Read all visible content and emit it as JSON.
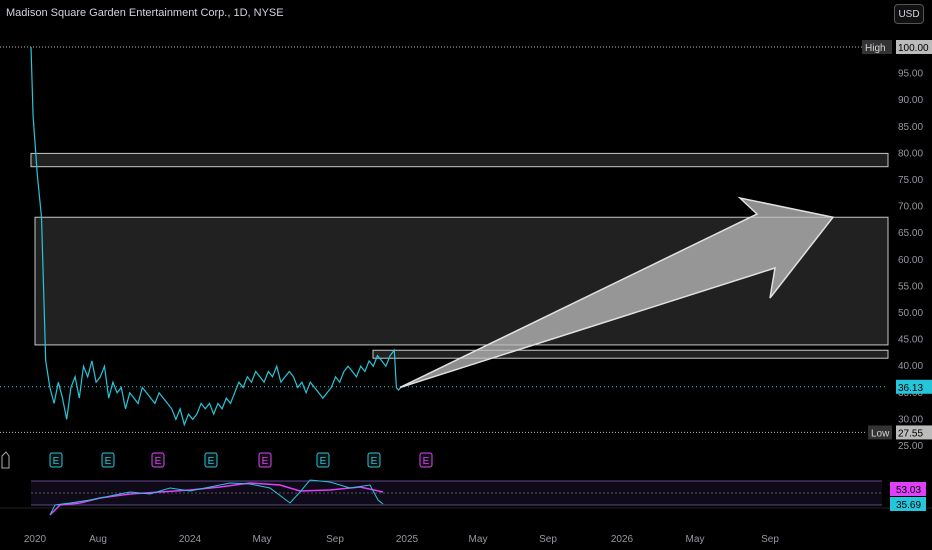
{
  "header": {
    "title": "Madison Square Garden Entertainment Corp., 1D, NYSE",
    "currency_button": "USD"
  },
  "chart_data": {
    "type": "line",
    "title": "Madison Square Garden Entertainment Corp., 1D, NYSE",
    "y_ticks": [
      "25.00",
      "30.00",
      "35.00",
      "40.00",
      "45.00",
      "50.00",
      "55.00",
      "60.00",
      "65.00",
      "70.00",
      "75.00",
      "80.00",
      "85.00",
      "90.00",
      "95.00",
      "100.00"
    ],
    "ylim": [
      25,
      100
    ],
    "x_ticks": [
      "2020",
      "Aug",
      "2024",
      "May",
      "Sep",
      "2025",
      "May",
      "Sep",
      "2026",
      "May",
      "Sep"
    ],
    "price_labels": {
      "high_label": "High",
      "high_value": "100.00",
      "last_value": "36.13",
      "low_label": "Low",
      "low_value": "27.55"
    },
    "zones": [
      {
        "from": 77.5,
        "to": 80.0
      },
      {
        "from": 44.0,
        "to": 68.0
      },
      {
        "from": 41.5,
        "to": 43.0
      }
    ],
    "series": [
      {
        "color": "#26c6da",
        "points": [
          [
            0,
            100
          ],
          [
            1,
            87
          ],
          [
            3,
            76
          ],
          [
            5,
            68
          ],
          [
            7,
            41
          ],
          [
            9,
            36
          ],
          [
            11,
            33
          ],
          [
            13,
            37
          ],
          [
            15,
            34
          ],
          [
            17,
            30
          ],
          [
            19,
            36
          ],
          [
            21,
            38
          ],
          [
            23,
            34
          ],
          [
            25,
            40
          ],
          [
            27,
            38
          ],
          [
            29,
            41
          ],
          [
            31,
            37
          ],
          [
            33,
            38
          ],
          [
            35,
            40
          ],
          [
            37,
            34
          ],
          [
            39,
            37
          ],
          [
            41,
            35
          ],
          [
            43,
            36
          ],
          [
            45,
            32
          ],
          [
            47,
            35
          ],
          [
            49,
            34
          ],
          [
            51,
            33
          ],
          [
            53,
            36
          ],
          [
            55,
            35
          ],
          [
            57,
            34
          ],
          [
            59,
            33
          ],
          [
            61,
            35
          ],
          [
            63,
            34
          ],
          [
            65,
            33
          ],
          [
            67,
            32
          ],
          [
            69,
            30
          ],
          [
            71,
            32
          ],
          [
            73,
            29
          ],
          [
            75,
            31
          ],
          [
            77,
            30
          ],
          [
            79,
            31
          ],
          [
            81,
            33
          ],
          [
            83,
            32
          ],
          [
            85,
            33
          ],
          [
            87,
            31
          ],
          [
            89,
            33
          ],
          [
            91,
            32
          ],
          [
            93,
            34
          ],
          [
            95,
            33
          ],
          [
            97,
            35
          ],
          [
            99,
            37
          ],
          [
            101,
            36
          ],
          [
            103,
            38
          ],
          [
            105,
            37
          ],
          [
            107,
            39
          ],
          [
            109,
            38
          ],
          [
            111,
            37
          ],
          [
            113,
            39
          ],
          [
            115,
            38
          ],
          [
            117,
            40
          ],
          [
            119,
            37
          ],
          [
            121,
            38
          ],
          [
            123,
            39
          ],
          [
            125,
            38
          ],
          [
            127,
            36
          ],
          [
            129,
            37
          ],
          [
            131,
            35
          ],
          [
            133,
            37
          ],
          [
            135,
            36
          ],
          [
            137,
            35
          ],
          [
            139,
            34
          ],
          [
            141,
            35
          ],
          [
            143,
            36
          ],
          [
            145,
            38
          ],
          [
            147,
            37
          ],
          [
            149,
            39
          ],
          [
            151,
            40
          ],
          [
            153,
            39
          ],
          [
            155,
            38
          ],
          [
            157,
            40
          ],
          [
            159,
            39
          ],
          [
            161,
            41
          ],
          [
            163,
            40
          ],
          [
            165,
            42
          ],
          [
            167,
            41
          ],
          [
            169,
            40
          ],
          [
            171,
            42
          ],
          [
            173,
            43
          ],
          [
            174,
            36
          ],
          [
            175,
            35.5
          ],
          [
            176,
            36
          ],
          [
            177,
            36.2
          ]
        ]
      }
    ],
    "annotation": {
      "type": "arrow",
      "color": "#aaaaaa",
      "from": [
        178,
        36
      ],
      "to": [
        380,
        68
      ]
    },
    "earnings_markers": [
      {
        "label": "E",
        "color": "#26c6da"
      },
      {
        "label": "E",
        "color": "#26c6da"
      },
      {
        "label": "E",
        "color": "#e040fb"
      },
      {
        "label": "E",
        "color": "#26c6da"
      },
      {
        "label": "E",
        "color": "#e040fb"
      },
      {
        "label": "E",
        "color": "#26c6da"
      },
      {
        "label": "E",
        "color": "#26c6da"
      },
      {
        "label": "E",
        "color": "#e040fb"
      }
    ],
    "indicator": {
      "values": [
        "53.03",
        "35.69"
      ],
      "colors": [
        "#e040fb",
        "#26c6da"
      ]
    }
  }
}
